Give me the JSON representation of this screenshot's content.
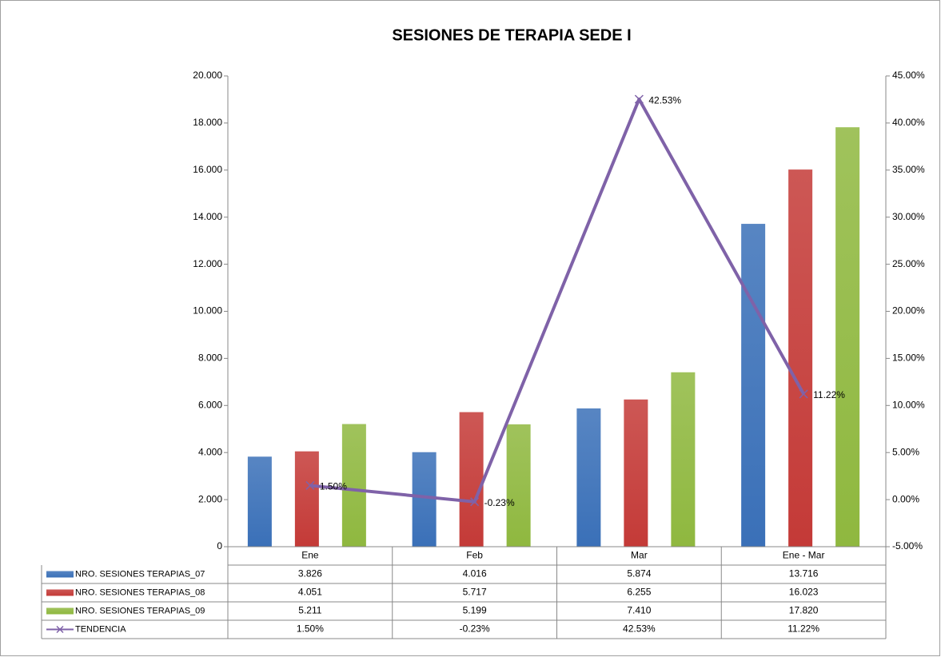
{
  "chart_data": {
    "type": "bar-line",
    "title": "SESIONES DE TERAPIA SEDE I",
    "categories": [
      "Ene",
      "Feb",
      "Mar",
      "Ene - Mar"
    ],
    "series": [
      {
        "name": "NRO. SESIONES TERAPIAS_07",
        "color": "#3a70b8",
        "values": [
          3826,
          4016,
          5874,
          13716
        ],
        "value_labels": [
          "3.826",
          "4.016",
          "5.874",
          "13.716"
        ]
      },
      {
        "name": "NRO. SESIONES TERAPIAS_08",
        "color": "#c43a37",
        "values": [
          4051,
          5717,
          6255,
          16023
        ],
        "value_labels": [
          "4.051",
          "5.717",
          "6.255",
          "16.023"
        ]
      },
      {
        "name": "NRO. SESIONES TERAPIAS_09",
        "color": "#8fb83f",
        "values": [
          5211,
          5199,
          7410,
          17820
        ],
        "value_labels": [
          "5.211",
          "5.199",
          "7.410",
          "17.820"
        ]
      },
      {
        "name": "TENDENCIA",
        "color": "#7f62a8",
        "axis": "y2",
        "type": "line",
        "values": [
          1.5,
          -0.23,
          42.53,
          11.22
        ],
        "value_labels": [
          "1.50%",
          "-0.23%",
          "42.53%",
          "11.22%"
        ]
      }
    ],
    "ylim": [
      0,
      20000
    ],
    "yticks": [
      0,
      {
        "value": 2000,
        "label": "2.000"
      },
      {
        "value": 4000,
        "label": "4.000"
      },
      {
        "value": 6000,
        "label": "6.000"
      },
      {
        "value": 8000,
        "label": "8.000"
      },
      {
        "value": 10000,
        "label": "10.000"
      },
      {
        "value": 12000,
        "label": "12.000"
      },
      {
        "value": 14000,
        "label": "14.000"
      },
      {
        "value": 16000,
        "label": "16.000"
      },
      {
        "value": 18000,
        "label": "18.000"
      },
      {
        "value": 20000,
        "label": "20.000"
      }
    ],
    "y2lim": [
      -5,
      45
    ],
    "y2ticks": [
      {
        "value": -5,
        "label": "-5.00%"
      },
      {
        "value": 0,
        "label": "0.00%"
      },
      {
        "value": 5,
        "label": "5.00%"
      },
      {
        "value": 10,
        "label": "10.00%"
      },
      {
        "value": 15,
        "label": "15.00%"
      },
      {
        "value": 20,
        "label": "20.00%"
      },
      {
        "value": 25,
        "label": "25.00%"
      },
      {
        "value": 30,
        "label": "30.00%"
      },
      {
        "value": 35,
        "label": "35.00%"
      },
      {
        "value": 40,
        "label": "40.00%"
      },
      {
        "value": 45,
        "label": "45.00%"
      }
    ]
  }
}
